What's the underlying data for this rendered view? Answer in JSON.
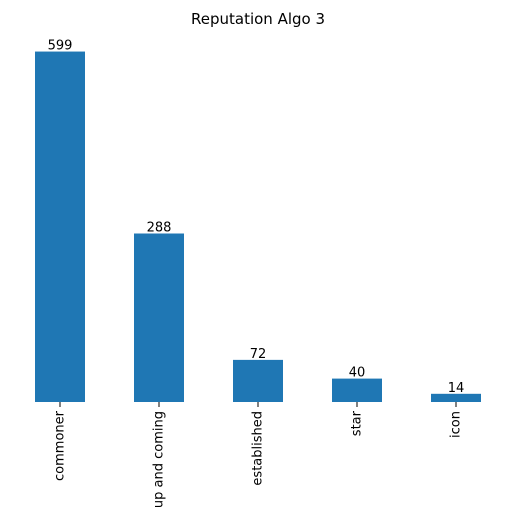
{
  "chart_data": {
    "type": "bar",
    "title": "Reputation Algo 3",
    "categories": [
      "commoner",
      "up and coming",
      "established",
      "star",
      "icon"
    ],
    "values": [
      599,
      288,
      72,
      40,
      14
    ],
    "color": "#1f77b4",
    "ylim": [
      0,
      629
    ],
    "grid": false,
    "legend": "none",
    "data_labels": true
  }
}
